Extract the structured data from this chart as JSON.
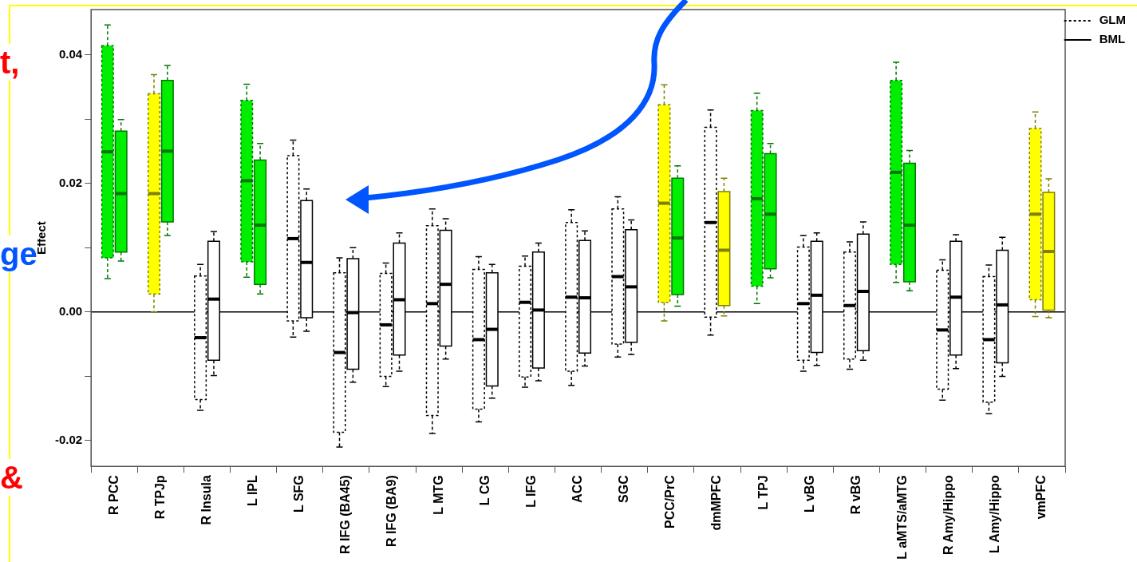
{
  "chart_data": {
    "type": "box",
    "ylabel": "Effect",
    "categories": [
      "R PCC",
      "R TPJp",
      "R Insula",
      "L IPL",
      "L SFG",
      "R IFG (BA45)",
      "R IFG (BA9)",
      "L MTG",
      "L CG",
      "L IFG",
      "ACC",
      "SGC",
      "PCC/PrC",
      "dmMPFC",
      "L TPJ",
      "L vBG",
      "R vBG",
      "L aMTS/aMTG",
      "R Amy/Hippo",
      "L Amy/Hippo",
      "vmPFC"
    ],
    "ylim": [
      -0.024,
      0.047
    ],
    "yticks": [
      {
        "value": -0.02,
        "label": "-0.02"
      },
      {
        "value": -0.01,
        "label": null
      },
      {
        "value": 0,
        "label": "0.00"
      },
      {
        "value": 0.01,
        "label": null
      },
      {
        "value": 0.02,
        "label": "0.02"
      },
      {
        "value": 0.03,
        "label": null
      },
      {
        "value": 0.04,
        "label": "0.04"
      }
    ],
    "grid": false,
    "legend": "top right",
    "ref_lines": [
      {
        "axis": "y",
        "value": 0,
        "label": null
      }
    ],
    "annotations": [
      "t,",
      "ge",
      "&"
    ],
    "series": [
      {
        "name": "GLM",
        "line_style": "dotted",
        "colors": [
          "#00ee00",
          "#ffff00",
          "#ffffff",
          "#00ee00",
          "#ffffff",
          "#ffffff",
          "#ffffff",
          "#ffffff",
          "#ffffff",
          "#ffffff",
          "#ffffff",
          "#ffffff",
          "#ffff00",
          "#ffffff",
          "#00ee00",
          "#ffffff",
          "#ffffff",
          "#00ee00",
          "#ffffff",
          "#ffffff",
          "#ffff00"
        ],
        "boxes": [
          {
            "low": 0.0052,
            "q1": 0.0084,
            "median": 0.0249,
            "q3": 0.0414,
            "high": 0.0446
          },
          {
            "low": 0.0,
            "q1": 0.0028,
            "median": 0.0184,
            "q3": 0.0339,
            "high": 0.0369
          },
          {
            "low": -0.0153,
            "q1": -0.0136,
            "median": -0.004,
            "q3": 0.0056,
            "high": 0.0074
          },
          {
            "low": 0.0054,
            "q1": 0.0078,
            "median": 0.0204,
            "q3": 0.0329,
            "high": 0.0354
          },
          {
            "low": -0.0039,
            "q1": -0.0014,
            "median": 0.0114,
            "q3": 0.0243,
            "high": 0.0267
          },
          {
            "low": -0.021,
            "q1": -0.0187,
            "median": -0.0063,
            "q3": 0.0061,
            "high": 0.0084
          },
          {
            "low": -0.0116,
            "q1": -0.01,
            "median": -0.002,
            "q3": 0.006,
            "high": 0.0076
          },
          {
            "low": -0.0189,
            "q1": -0.0161,
            "median": 0.0013,
            "q3": 0.0134,
            "high": 0.016
          },
          {
            "low": -0.0171,
            "q1": -0.0151,
            "median": -0.0043,
            "q3": 0.0066,
            "high": 0.0086
          },
          {
            "low": -0.0117,
            "q1": -0.0101,
            "median": 0.0015,
            "q3": 0.0071,
            "high": 0.0087
          },
          {
            "low": -0.0114,
            "q1": -0.0092,
            "median": 0.0023,
            "q3": 0.0139,
            "high": 0.0159
          },
          {
            "low": -0.007,
            "q1": -0.005,
            "median": 0.0055,
            "q3": 0.016,
            "high": 0.0179
          },
          {
            "low": -0.0014,
            "q1": 0.0015,
            "median": 0.0169,
            "q3": 0.0322,
            "high": 0.0353
          },
          {
            "low": -0.0036,
            "q1": -0.0008,
            "median": 0.0139,
            "q3": 0.0287,
            "high": 0.0314
          },
          {
            "low": 0.0013,
            "q1": 0.004,
            "median": 0.0176,
            "q3": 0.0313,
            "high": 0.034
          },
          {
            "low": -0.0092,
            "q1": -0.0075,
            "median": 0.0013,
            "q3": 0.0101,
            "high": 0.0119
          },
          {
            "low": -0.0089,
            "q1": -0.0073,
            "median": 0.001,
            "q3": 0.0093,
            "high": 0.0109
          },
          {
            "low": 0.0046,
            "q1": 0.0074,
            "median": 0.0217,
            "q3": 0.036,
            "high": 0.0388
          },
          {
            "low": -0.0137,
            "q1": -0.012,
            "median": -0.0028,
            "q3": 0.0065,
            "high": 0.0081
          },
          {
            "low": -0.0158,
            "q1": -0.014,
            "median": -0.0043,
            "q3": 0.0055,
            "high": 0.0073
          },
          {
            "low": -0.0007,
            "q1": 0.0019,
            "median": 0.0152,
            "q3": 0.0285,
            "high": 0.0311
          }
        ]
      },
      {
        "name": "BML",
        "line_style": "solid",
        "colors": [
          "#00ee00",
          "#00ee00",
          "#ffffff",
          "#00ee00",
          "#ffffff",
          "#ffffff",
          "#ffffff",
          "#ffffff",
          "#ffffff",
          "#ffffff",
          "#ffffff",
          "#ffffff",
          "#00ee00",
          "#ffff00",
          "#00ee00",
          "#ffffff",
          "#ffffff",
          "#00ee00",
          "#ffffff",
          "#ffffff",
          "#ffff00"
        ],
        "boxes": [
          {
            "low": 0.0079,
            "q1": 0.0093,
            "median": 0.0184,
            "q3": 0.0281,
            "high": 0.0299
          },
          {
            "low": 0.0119,
            "q1": 0.014,
            "median": 0.025,
            "q3": 0.036,
            "high": 0.0383
          },
          {
            "low": -0.0099,
            "q1": -0.0075,
            "median": 0.002,
            "q3": 0.011,
            "high": 0.0125
          },
          {
            "low": 0.0028,
            "q1": 0.0043,
            "median": 0.0135,
            "q3": 0.0236,
            "high": 0.0262
          },
          {
            "low": -0.003,
            "q1": -0.0009,
            "median": 0.0077,
            "q3": 0.0173,
            "high": 0.0191
          },
          {
            "low": -0.0109,
            "q1": -0.0089,
            "median": -0.0001,
            "q3": 0.0083,
            "high": 0.01
          },
          {
            "low": -0.0092,
            "q1": -0.0067,
            "median": 0.0019,
            "q3": 0.0107,
            "high": 0.0123
          },
          {
            "low": -0.0073,
            "q1": -0.0053,
            "median": 0.0043,
            "q3": 0.0127,
            "high": 0.0145
          },
          {
            "low": -0.0134,
            "q1": -0.0115,
            "median": -0.0027,
            "q3": 0.0061,
            "high": 0.0074
          },
          {
            "low": -0.0107,
            "q1": -0.0087,
            "median": 0.0003,
            "q3": 0.0093,
            "high": 0.0107
          },
          {
            "low": -0.0084,
            "q1": -0.0064,
            "median": 0.0022,
            "q3": 0.0111,
            "high": 0.0126
          },
          {
            "low": -0.0066,
            "q1": -0.0047,
            "median": 0.0039,
            "q3": 0.0128,
            "high": 0.0143
          },
          {
            "low": 0.0009,
            "q1": 0.0027,
            "median": 0.0115,
            "q3": 0.0208,
            "high": 0.0227
          },
          {
            "low": -0.0006,
            "q1": 0.001,
            "median": 0.0096,
            "q3": 0.0187,
            "high": 0.0208
          },
          {
            "low": 0.0053,
            "q1": 0.0067,
            "median": 0.0152,
            "q3": 0.0246,
            "high": 0.0262
          },
          {
            "low": -0.0083,
            "q1": -0.0063,
            "median": 0.0026,
            "q3": 0.011,
            "high": 0.0123
          },
          {
            "low": -0.0075,
            "q1": -0.006,
            "median": 0.0032,
            "q3": 0.0121,
            "high": 0.014
          },
          {
            "low": 0.0033,
            "q1": 0.0047,
            "median": 0.0135,
            "q3": 0.0231,
            "high": 0.0251
          },
          {
            "low": -0.0088,
            "q1": -0.0067,
            "median": 0.0023,
            "q3": 0.011,
            "high": 0.012
          },
          {
            "low": -0.01,
            "q1": -0.0079,
            "median": 0.0011,
            "q3": 0.0096,
            "high": 0.0116
          },
          {
            "low": -0.0009,
            "q1": 0.0003,
            "median": 0.0094,
            "q3": 0.0186,
            "high": 0.0207
          }
        ]
      }
    ]
  }
}
